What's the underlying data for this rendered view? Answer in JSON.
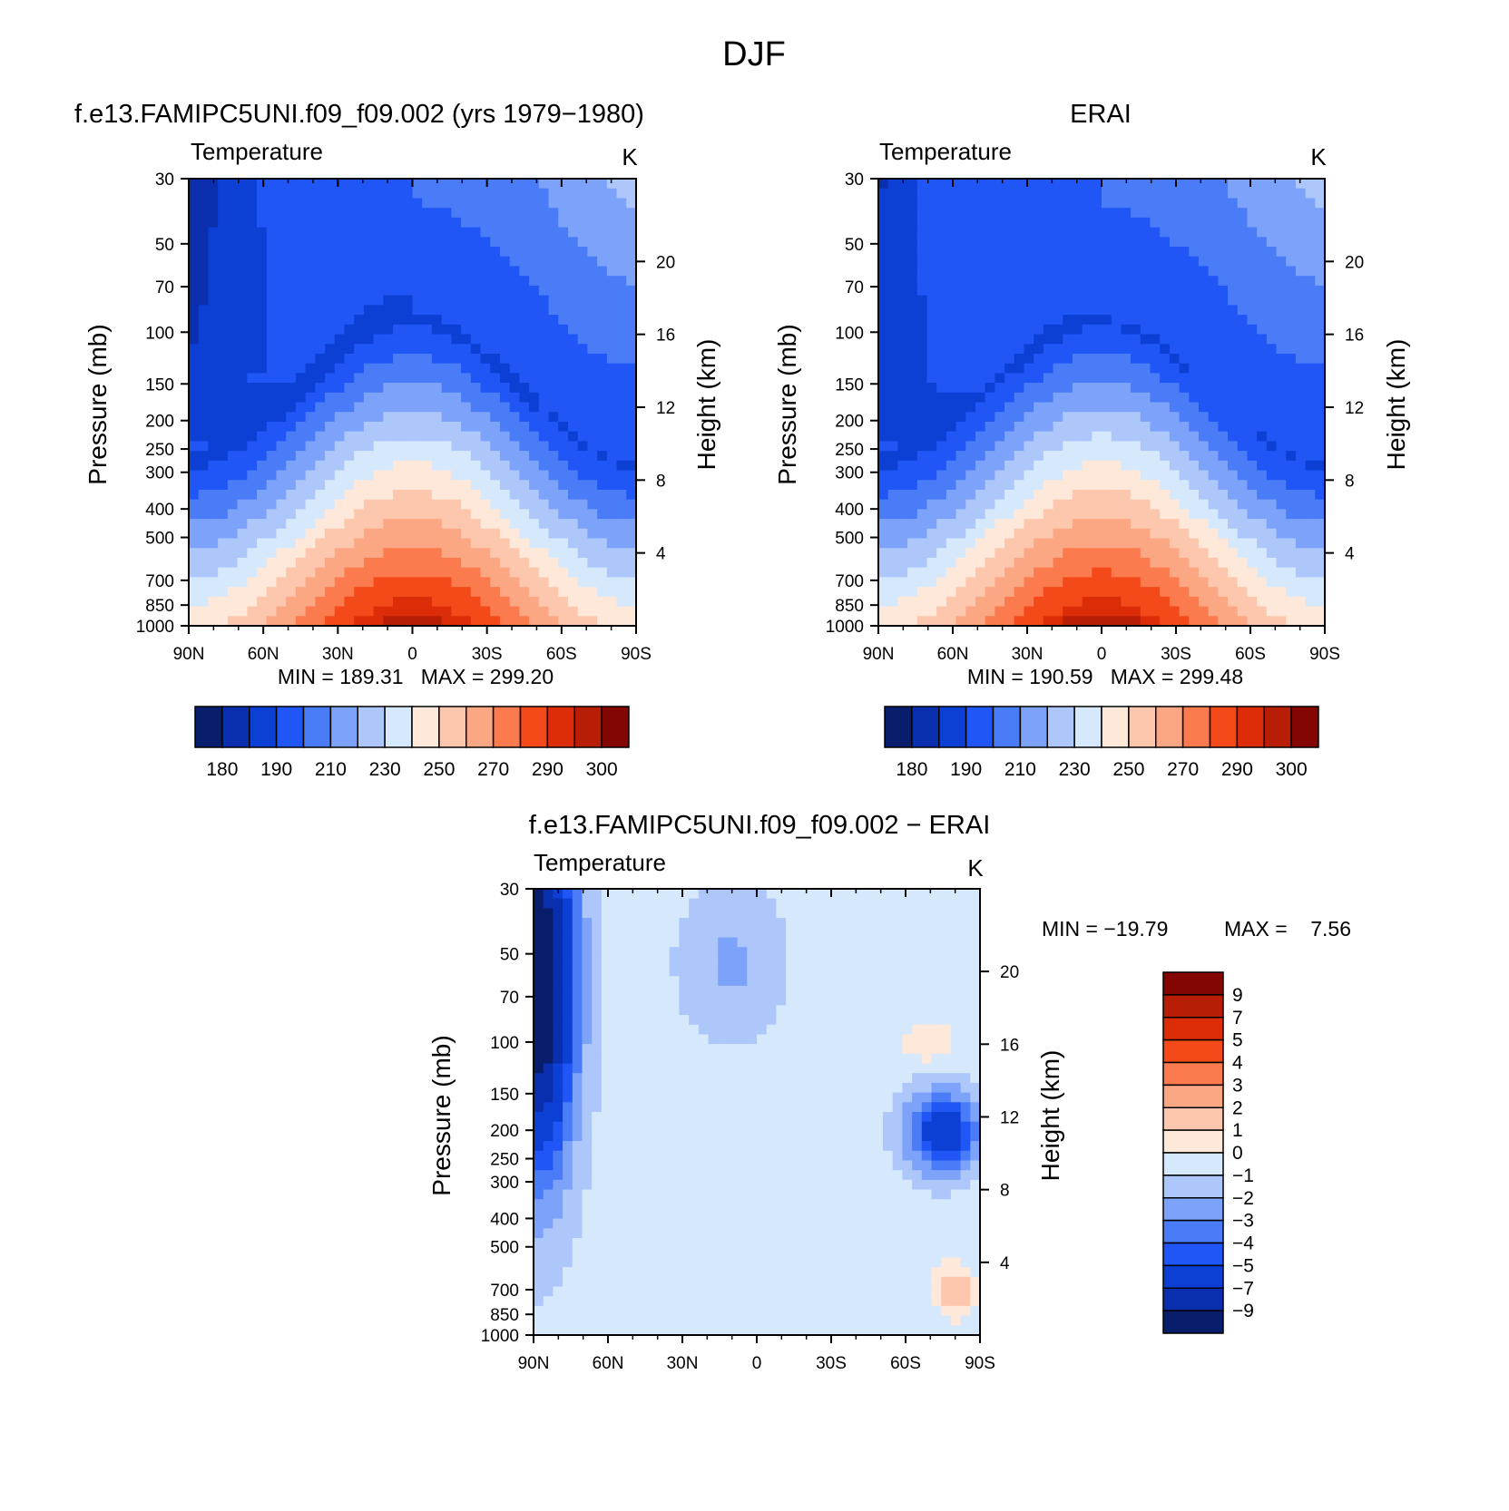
{
  "suptitle": "DJF",
  "colors": {
    "abs_palette": [
      "#081d6b",
      "#0a2fae",
      "#0c3fd4",
      "#1f56f5",
      "#4a7cf7",
      "#7da2f9",
      "#adc7fb",
      "#d6e8fc",
      "#fde8d9",
      "#fdc7ae",
      "#fca783",
      "#fb7a4e",
      "#f44a1a",
      "#dc2c08",
      "#b81e06",
      "#830603"
    ],
    "diff_palette": [
      "#081d6b",
      "#0a2fae",
      "#0c3fd4",
      "#1f56f5",
      "#4a7cf7",
      "#7da2f9",
      "#adc7fb",
      "#d6e8fc",
      "#fde8d9",
      "#fdc7ae",
      "#fca783",
      "#fb7a4e",
      "#f44a1a",
      "#dc2c08",
      "#b81e06",
      "#830603"
    ]
  },
  "chart_data": [
    {
      "type": "heatmap",
      "title": "f.e13.FAMIPC5UNI.f09_f09.002 (yrs 1979−1980)",
      "left_label": "Temperature",
      "units_label": "K",
      "xlabel": "",
      "ylabel": "Pressure (mb)",
      "y2label": "Height (km)",
      "x_ticks": [
        "90N",
        "60N",
        "30N",
        "0",
        "30S",
        "60S",
        "90S"
      ],
      "y_ticks": [
        30,
        50,
        70,
        100,
        150,
        200,
        250,
        300,
        400,
        500,
        700,
        850,
        1000
      ],
      "y2_ticks": [
        4,
        8,
        12,
        16,
        20
      ],
      "y_scale": "log",
      "ylim": [
        1000,
        30
      ],
      "stats": "MIN = 189.31   MAX = 299.20",
      "levels": [
        180,
        185,
        190,
        200,
        210,
        220,
        230,
        240,
        250,
        260,
        270,
        280,
        290,
        295,
        300
      ],
      "colorbar_labels": [
        "180",
        "190",
        "210",
        "230",
        "250",
        "270",
        "290",
        "300"
      ],
      "min": 189.31,
      "max": 299.2
    },
    {
      "type": "heatmap",
      "title": "ERAI",
      "left_label": "Temperature",
      "units_label": "K",
      "xlabel": "",
      "ylabel": "Pressure (mb)",
      "y2label": "Height (km)",
      "x_ticks": [
        "90N",
        "60N",
        "30N",
        "0",
        "30S",
        "60S",
        "90S"
      ],
      "y_ticks": [
        30,
        50,
        70,
        100,
        150,
        200,
        250,
        300,
        400,
        500,
        700,
        850,
        1000
      ],
      "y2_ticks": [
        4,
        8,
        12,
        16,
        20
      ],
      "y_scale": "log",
      "ylim": [
        1000,
        30
      ],
      "stats": "MIN = 190.59   MAX = 299.48",
      "levels": [
        180,
        185,
        190,
        200,
        210,
        220,
        230,
        240,
        250,
        260,
        270,
        280,
        290,
        295,
        300
      ],
      "colorbar_labels": [
        "180",
        "190",
        "210",
        "230",
        "250",
        "270",
        "290",
        "300"
      ],
      "min": 190.59,
      "max": 299.48
    },
    {
      "type": "heatmap",
      "title": "f.e13.FAMIPC5UNI.f09_f09.002 − ERAI",
      "left_label": "Temperature",
      "units_label": "K",
      "xlabel": "",
      "ylabel": "Pressure (mb)",
      "y2label": "Height (km)",
      "x_ticks": [
        "90N",
        "60N",
        "30N",
        "0",
        "30S",
        "60S",
        "90S"
      ],
      "y_ticks": [
        30,
        50,
        70,
        100,
        150,
        200,
        250,
        300,
        400,
        500,
        700,
        850,
        1000
      ],
      "y2_ticks": [
        4,
        8,
        12,
        16,
        20
      ],
      "y_scale": "log",
      "ylim": [
        1000,
        30
      ],
      "stats_min": "MIN = −19.79",
      "stats_max": "MAX =    7.56",
      "levels": [
        -9,
        -7,
        -5,
        -4,
        -3,
        -2,
        -1,
        0,
        1,
        2,
        3,
        4,
        5,
        7,
        9
      ],
      "colorbar_labels": [
        "9",
        "7",
        "5",
        "4",
        "3",
        "2",
        "1",
        "0",
        "−1",
        "−2",
        "−3",
        "−4",
        "−5",
        "−7",
        "−9"
      ],
      "min": -19.79,
      "max": 7.56
    }
  ]
}
